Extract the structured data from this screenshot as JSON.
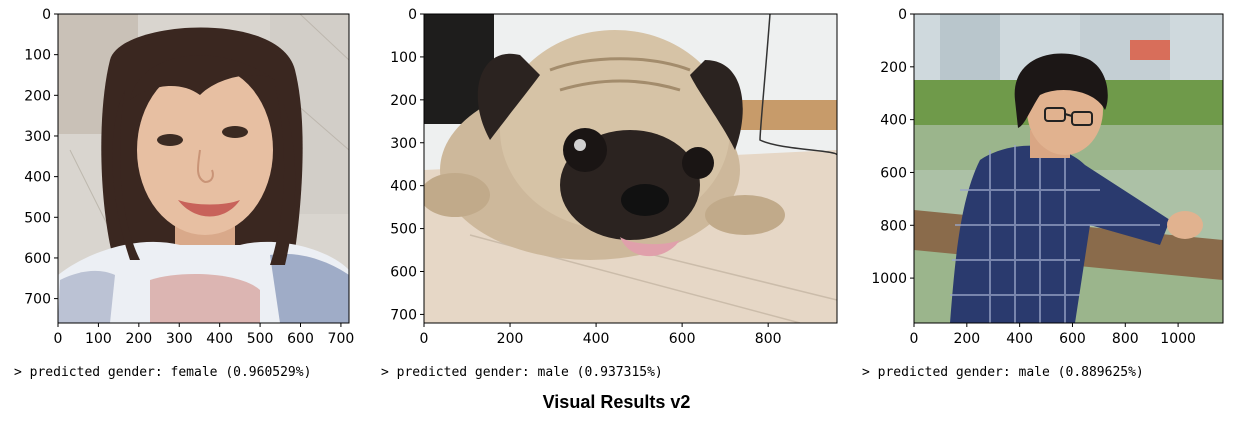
{
  "chart_data": [
    {
      "type": "image",
      "image_subject": "selfie of a smiling young woman with shoulder-length dark hair wearing a white patterned hoodie",
      "xlim": [
        0,
        720
      ],
      "ylim": [
        0,
        760
      ],
      "x_ticks": [
        0,
        100,
        200,
        300,
        400,
        500,
        600,
        700
      ],
      "y_ticks": [
        0,
        100,
        200,
        300,
        400,
        500,
        600,
        700
      ],
      "caption": "> predicted gender: female (0.960529%)",
      "colors": {
        "bg": "#d9d5cf",
        "face": "#e7bfa2",
        "hair": "#3a2720",
        "hoodie": "#eceff4",
        "pattern": "#6d7fa8"
      }
    },
    {
      "type": "image",
      "image_subject": "pug dog lying on a tiled floor with tongue out",
      "xlim": [
        0,
        960
      ],
      "ylim": [
        0,
        720
      ],
      "x_ticks": [
        0,
        200,
        400,
        600,
        800
      ],
      "y_ticks": [
        0,
        100,
        200,
        300,
        400,
        500,
        600,
        700
      ],
      "caption": "> predicted gender: male (0.937315%)",
      "colors": {
        "wall": "#eef0f0",
        "floor": "#e6d7c6",
        "fur": "#cdb89b",
        "mask": "#2b2320",
        "tongue": "#e0a0ab"
      }
    },
    {
      "type": "image",
      "image_subject": "young man with glasses in a blue plaid shirt leaning on a railing outdoors by a lake",
      "xlim": [
        0,
        1170
      ],
      "ylim": [
        0,
        1170
      ],
      "x_ticks": [
        0,
        200,
        400,
        600,
        800,
        1000
      ],
      "y_ticks": [
        0,
        200,
        400,
        600,
        800,
        1000
      ],
      "caption": "> predicted gender: male (0.889625%)",
      "colors": {
        "sky": "#cfd9dd",
        "trees": "#6f9a4a",
        "water": "#9bb58c",
        "shirt": "#2a3a6e",
        "skin": "#e1b28f",
        "rail": "#8a6b4b"
      }
    }
  ],
  "footer": {
    "title": "Visual Results v2"
  }
}
